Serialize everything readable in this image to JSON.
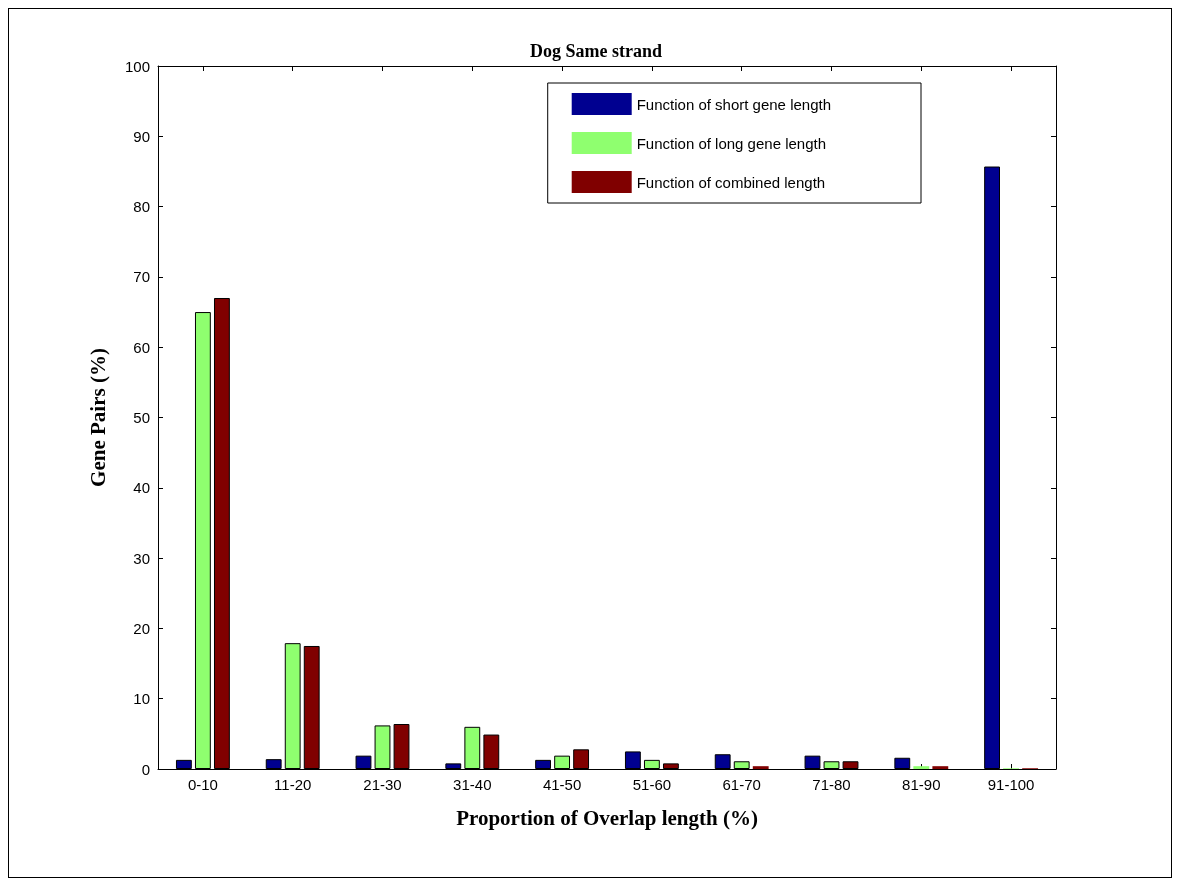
{
  "chart_data": {
    "type": "bar",
    "title": "Dog Same strand",
    "xlabel": "Proportion of Overlap length (%)",
    "ylabel": "Gene Pairs (%)",
    "categories": [
      "0-10",
      "11-20",
      "21-30",
      "31-40",
      "41-50",
      "51-60",
      "61-70",
      "71-80",
      "81-90",
      "91-100"
    ],
    "series": [
      {
        "name": "Function of short gene length",
        "color": "#000090",
        "values": [
          1.3,
          1.4,
          1.9,
          0.8,
          1.3,
          2.5,
          2.1,
          1.9,
          1.6,
          85.7
        ]
      },
      {
        "name": "Function of long gene length",
        "color": "#8fff6f",
        "values": [
          65,
          17.9,
          6.2,
          6.0,
          1.9,
          1.3,
          1.1,
          1.1,
          0.4,
          0.1
        ]
      },
      {
        "name": "Function of combined length",
        "color": "#800000",
        "values": [
          67,
          17.5,
          6.4,
          4.9,
          2.8,
          0.8,
          0.4,
          1.1,
          0.4,
          0.1
        ]
      }
    ],
    "ylim": [
      0,
      100
    ],
    "yticks": [
      0,
      10,
      20,
      30,
      40,
      50,
      60,
      70,
      80,
      90,
      100
    ],
    "grid": false,
    "legend": "top right"
  }
}
